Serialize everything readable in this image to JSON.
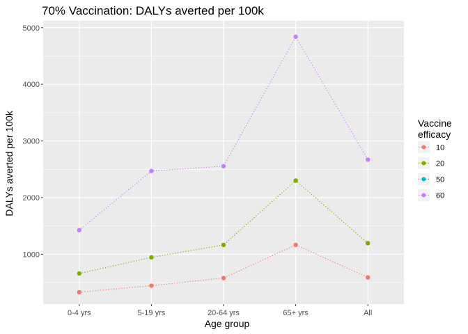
{
  "chart_data": {
    "type": "line",
    "title": "70% Vaccination: DALYs averted per 100k",
    "xlabel": "Age group",
    "ylabel": "DALYs averted per 100k",
    "categories": [
      "0-4 yrs",
      "5-19 yrs",
      "20-64 yrs",
      "65+ yrs",
      "All"
    ],
    "ylim": [
      120,
      5120
    ],
    "yticks": [
      1000,
      2000,
      3000,
      4000,
      5000
    ],
    "grid": true,
    "line_style": "dotted",
    "legend": {
      "title_lines": [
        "Vaccine",
        "efficacy"
      ],
      "position": "right"
    },
    "series": [
      {
        "name": "10",
        "color": "#F8766D",
        "values": [
          330,
          445,
          580,
          1165,
          590
        ]
      },
      {
        "name": "20",
        "color": "#7CAE00",
        "values": [
          660,
          945,
          1165,
          2300,
          1195
        ]
      },
      {
        "name": "50",
        "color": "#00BFC4",
        "values": [
          null,
          null,
          null,
          null,
          null
        ]
      },
      {
        "name": "60",
        "color": "#C77CFF",
        "values": [
          1425,
          2470,
          2555,
          4840,
          2670
        ]
      }
    ]
  }
}
